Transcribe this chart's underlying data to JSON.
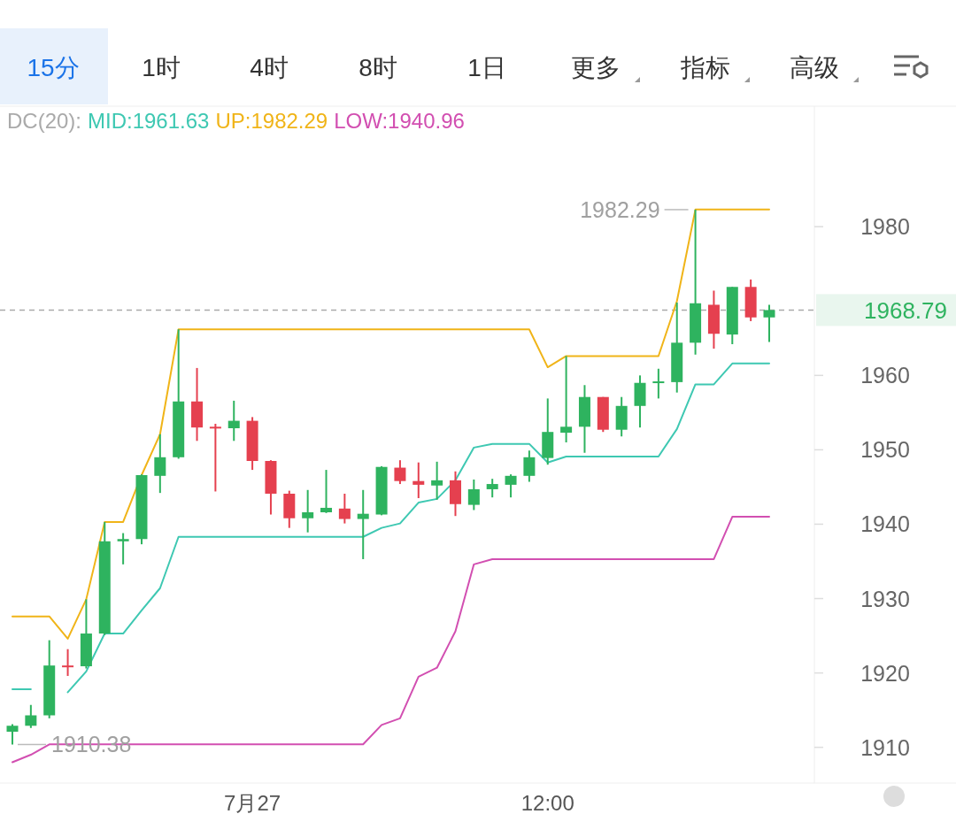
{
  "chart_data": {
    "type": "candlestick",
    "categories": [
      null,
      null,
      null,
      null,
      null,
      null,
      null,
      null,
      null,
      null,
      null,
      null,
      null,
      "7月27",
      null,
      null,
      null,
      null,
      null,
      null,
      null,
      null,
      null,
      null,
      null,
      null,
      null,
      null,
      null,
      "12:00",
      null,
      null,
      null,
      null,
      null,
      null,
      null,
      null,
      null,
      null,
      null,
      null
    ],
    "ohlc": [
      [
        1912.1,
        1913.1,
        1910.38,
        1912.9
      ],
      [
        1912.9,
        1915.7,
        1912.6,
        1914.3
      ],
      [
        1914.3,
        1924.4,
        1913.9,
        1921.0
      ],
      [
        1921.0,
        1923.2,
        1919.6,
        1920.9
      ],
      [
        1920.9,
        1929.9,
        1920.6,
        1925.3
      ],
      [
        1925.3,
        1940.3,
        1925.1,
        1937.7
      ],
      [
        1937.7,
        1938.8,
        1934.6,
        1938.0
      ],
      [
        1938.0,
        1946.7,
        1937.3,
        1946.6
      ],
      [
        1946.5,
        1952.1,
        1944.2,
        1949.0
      ],
      [
        1949.0,
        1966.2,
        1948.8,
        1956.5
      ],
      [
        1956.5,
        1961.0,
        1951.2,
        1953.0
      ],
      [
        1953.1,
        1953.5,
        1944.4,
        1953.0
      ],
      [
        1952.9,
        1956.6,
        1951.2,
        1953.9
      ],
      [
        1953.9,
        1954.4,
        1947.3,
        1948.5
      ],
      [
        1948.5,
        1948.6,
        1941.3,
        1944.1
      ],
      [
        1944.1,
        1944.5,
        1939.5,
        1940.8
      ],
      [
        1940.8,
        1944.6,
        1938.9,
        1941.6
      ],
      [
        1941.6,
        1947.3,
        1941.5,
        1942.2
      ],
      [
        1942.1,
        1944.1,
        1940.1,
        1940.7
      ],
      [
        1940.7,
        1944.6,
        1935.3,
        1941.4
      ],
      [
        1941.3,
        1947.8,
        1941.2,
        1947.7
      ],
      [
        1947.6,
        1948.6,
        1945.4,
        1945.8
      ],
      [
        1945.8,
        1948.3,
        1943.5,
        1945.3
      ],
      [
        1945.2,
        1948.4,
        1943.3,
        1945.9
      ],
      [
        1945.9,
        1947.1,
        1941.1,
        1942.7
      ],
      [
        1942.6,
        1946.0,
        1941.9,
        1944.7
      ],
      [
        1944.7,
        1946.1,
        1943.6,
        1945.4
      ],
      [
        1945.3,
        1946.7,
        1943.6,
        1946.5
      ],
      [
        1946.5,
        1949.9,
        1945.7,
        1949.0
      ],
      [
        1948.9,
        1956.9,
        1948.0,
        1952.4
      ],
      [
        1952.3,
        1962.6,
        1951.0,
        1953.1
      ],
      [
        1953.1,
        1958.7,
        1949.6,
        1957.1
      ],
      [
        1957.1,
        1957.1,
        1952.4,
        1952.7
      ],
      [
        1952.7,
        1957.1,
        1951.8,
        1955.9
      ],
      [
        1955.9,
        1960.0,
        1953.0,
        1959.0
      ],
      [
        1959.0,
        1960.9,
        1956.9,
        1959.2
      ],
      [
        1959.1,
        1969.8,
        1957.7,
        1964.4
      ],
      [
        1964.4,
        1982.29,
        1962.8,
        1969.7
      ],
      [
        1969.5,
        1971.4,
        1963.6,
        1965.6
      ],
      [
        1965.5,
        1971.9,
        1964.2,
        1971.9
      ],
      [
        1971.9,
        1972.9,
        1967.3,
        1967.8
      ],
      [
        1967.8,
        1969.5,
        1964.5,
        1968.79
      ]
    ],
    "colors": [
      "#2eb35f",
      "#2eb35f",
      "#2eb35f",
      "#e5404f",
      "#2eb35f",
      "#2eb35f",
      "#2eb35f",
      "#2eb35f",
      "#2eb35f",
      "#2eb35f",
      "#e5404f",
      "#e5404f",
      "#2eb35f",
      "#e5404f",
      "#e5404f",
      "#e5404f",
      "#2eb35f",
      "#2eb35f",
      "#e5404f",
      "#2eb35f",
      "#2eb35f",
      "#e5404f",
      "#e5404f",
      "#2eb35f",
      "#e5404f",
      "#2eb35f",
      "#2eb35f",
      "#2eb35f",
      "#2eb35f",
      "#2eb35f",
      "#2eb35f",
      "#2eb35f",
      "#e5404f",
      "#2eb35f",
      "#2eb35f",
      "#2eb35f",
      "#2eb35f",
      "#2eb35f",
      "#e5404f",
      "#2eb35f",
      "#e5404f",
      "#2eb35f"
    ],
    "series": [
      {
        "name": "MID:1961.63",
        "type": "line",
        "color": "#3ec8b2",
        "values": [
          1917.8,
          1917.8,
          null,
          1917.4,
          1920.2,
          1925.3,
          1925.3,
          1928.4,
          1931.4,
          1938.3,
          1938.3,
          1938.3,
          1938.3,
          1938.3,
          1938.3,
          1938.3,
          1938.3,
          1938.3,
          1938.3,
          1938.3,
          1939.5,
          1940.1,
          1942.9,
          1943.4,
          1945.9,
          1950.3,
          1950.8,
          1950.8,
          1950.8,
          1948.3,
          1949.1,
          1949.1,
          1949.1,
          1949.1,
          1949.1,
          1949.1,
          1952.8,
          1958.8,
          1958.8,
          1961.6,
          1961.6,
          1961.6
        ]
      },
      {
        "name": "UP:1982.29",
        "type": "line",
        "color": "#f0b418",
        "values": [
          1927.6,
          1927.6,
          1927.6,
          1924.6,
          1929.9,
          1940.3,
          1940.3,
          1946.6,
          1952.1,
          1966.2,
          1966.2,
          1966.2,
          1966.2,
          1966.2,
          1966.2,
          1966.2,
          1966.2,
          1966.2,
          1966.2,
          1966.2,
          1966.2,
          1966.2,
          1966.2,
          1966.2,
          1966.2,
          1966.2,
          1966.2,
          1966.2,
          1966.2,
          1961.1,
          1962.6,
          1962.6,
          1962.6,
          1962.6,
          1962.6,
          1962.6,
          1970.0,
          1982.3,
          1982.3,
          1982.3,
          1982.3,
          1982.3
        ]
      },
      {
        "name": "LOW:1940.96",
        "type": "line",
        "color": "#d24fb1",
        "values": [
          1908.0,
          1909.0,
          1910.4,
          1910.4,
          1910.4,
          1910.4,
          1910.4,
          1910.4,
          1910.4,
          1910.4,
          1910.4,
          1910.4,
          1910.4,
          1910.4,
          1910.4,
          1910.4,
          1910.4,
          1910.4,
          1910.4,
          1910.4,
          1913.0,
          1913.9,
          1919.5,
          1920.7,
          1925.6,
          1934.6,
          1935.3,
          1935.3,
          1935.3,
          1935.3,
          1935.3,
          1935.3,
          1935.3,
          1935.3,
          1935.3,
          1935.3,
          1935.3,
          1935.3,
          1935.3,
          1941.0,
          1941.0,
          1941.0
        ]
      }
    ],
    "ylim": [
      1905.2,
      1996.2
    ],
    "yticks": [
      1910,
      1920,
      1930,
      1940,
      1950,
      1960,
      1980
    ],
    "ref_lines": [
      {
        "axis": "y",
        "value": 1968.79,
        "label": "1968.79",
        "color": "#aaaaaa",
        "line_style": "dashed"
      }
    ],
    "annotations": [
      "15分",
      "1时",
      "4时",
      "8时",
      "1日",
      "更多",
      "指标",
      "高级",
      "1982.29",
      "1910.38",
      "DC(20):"
    ]
  }
}
